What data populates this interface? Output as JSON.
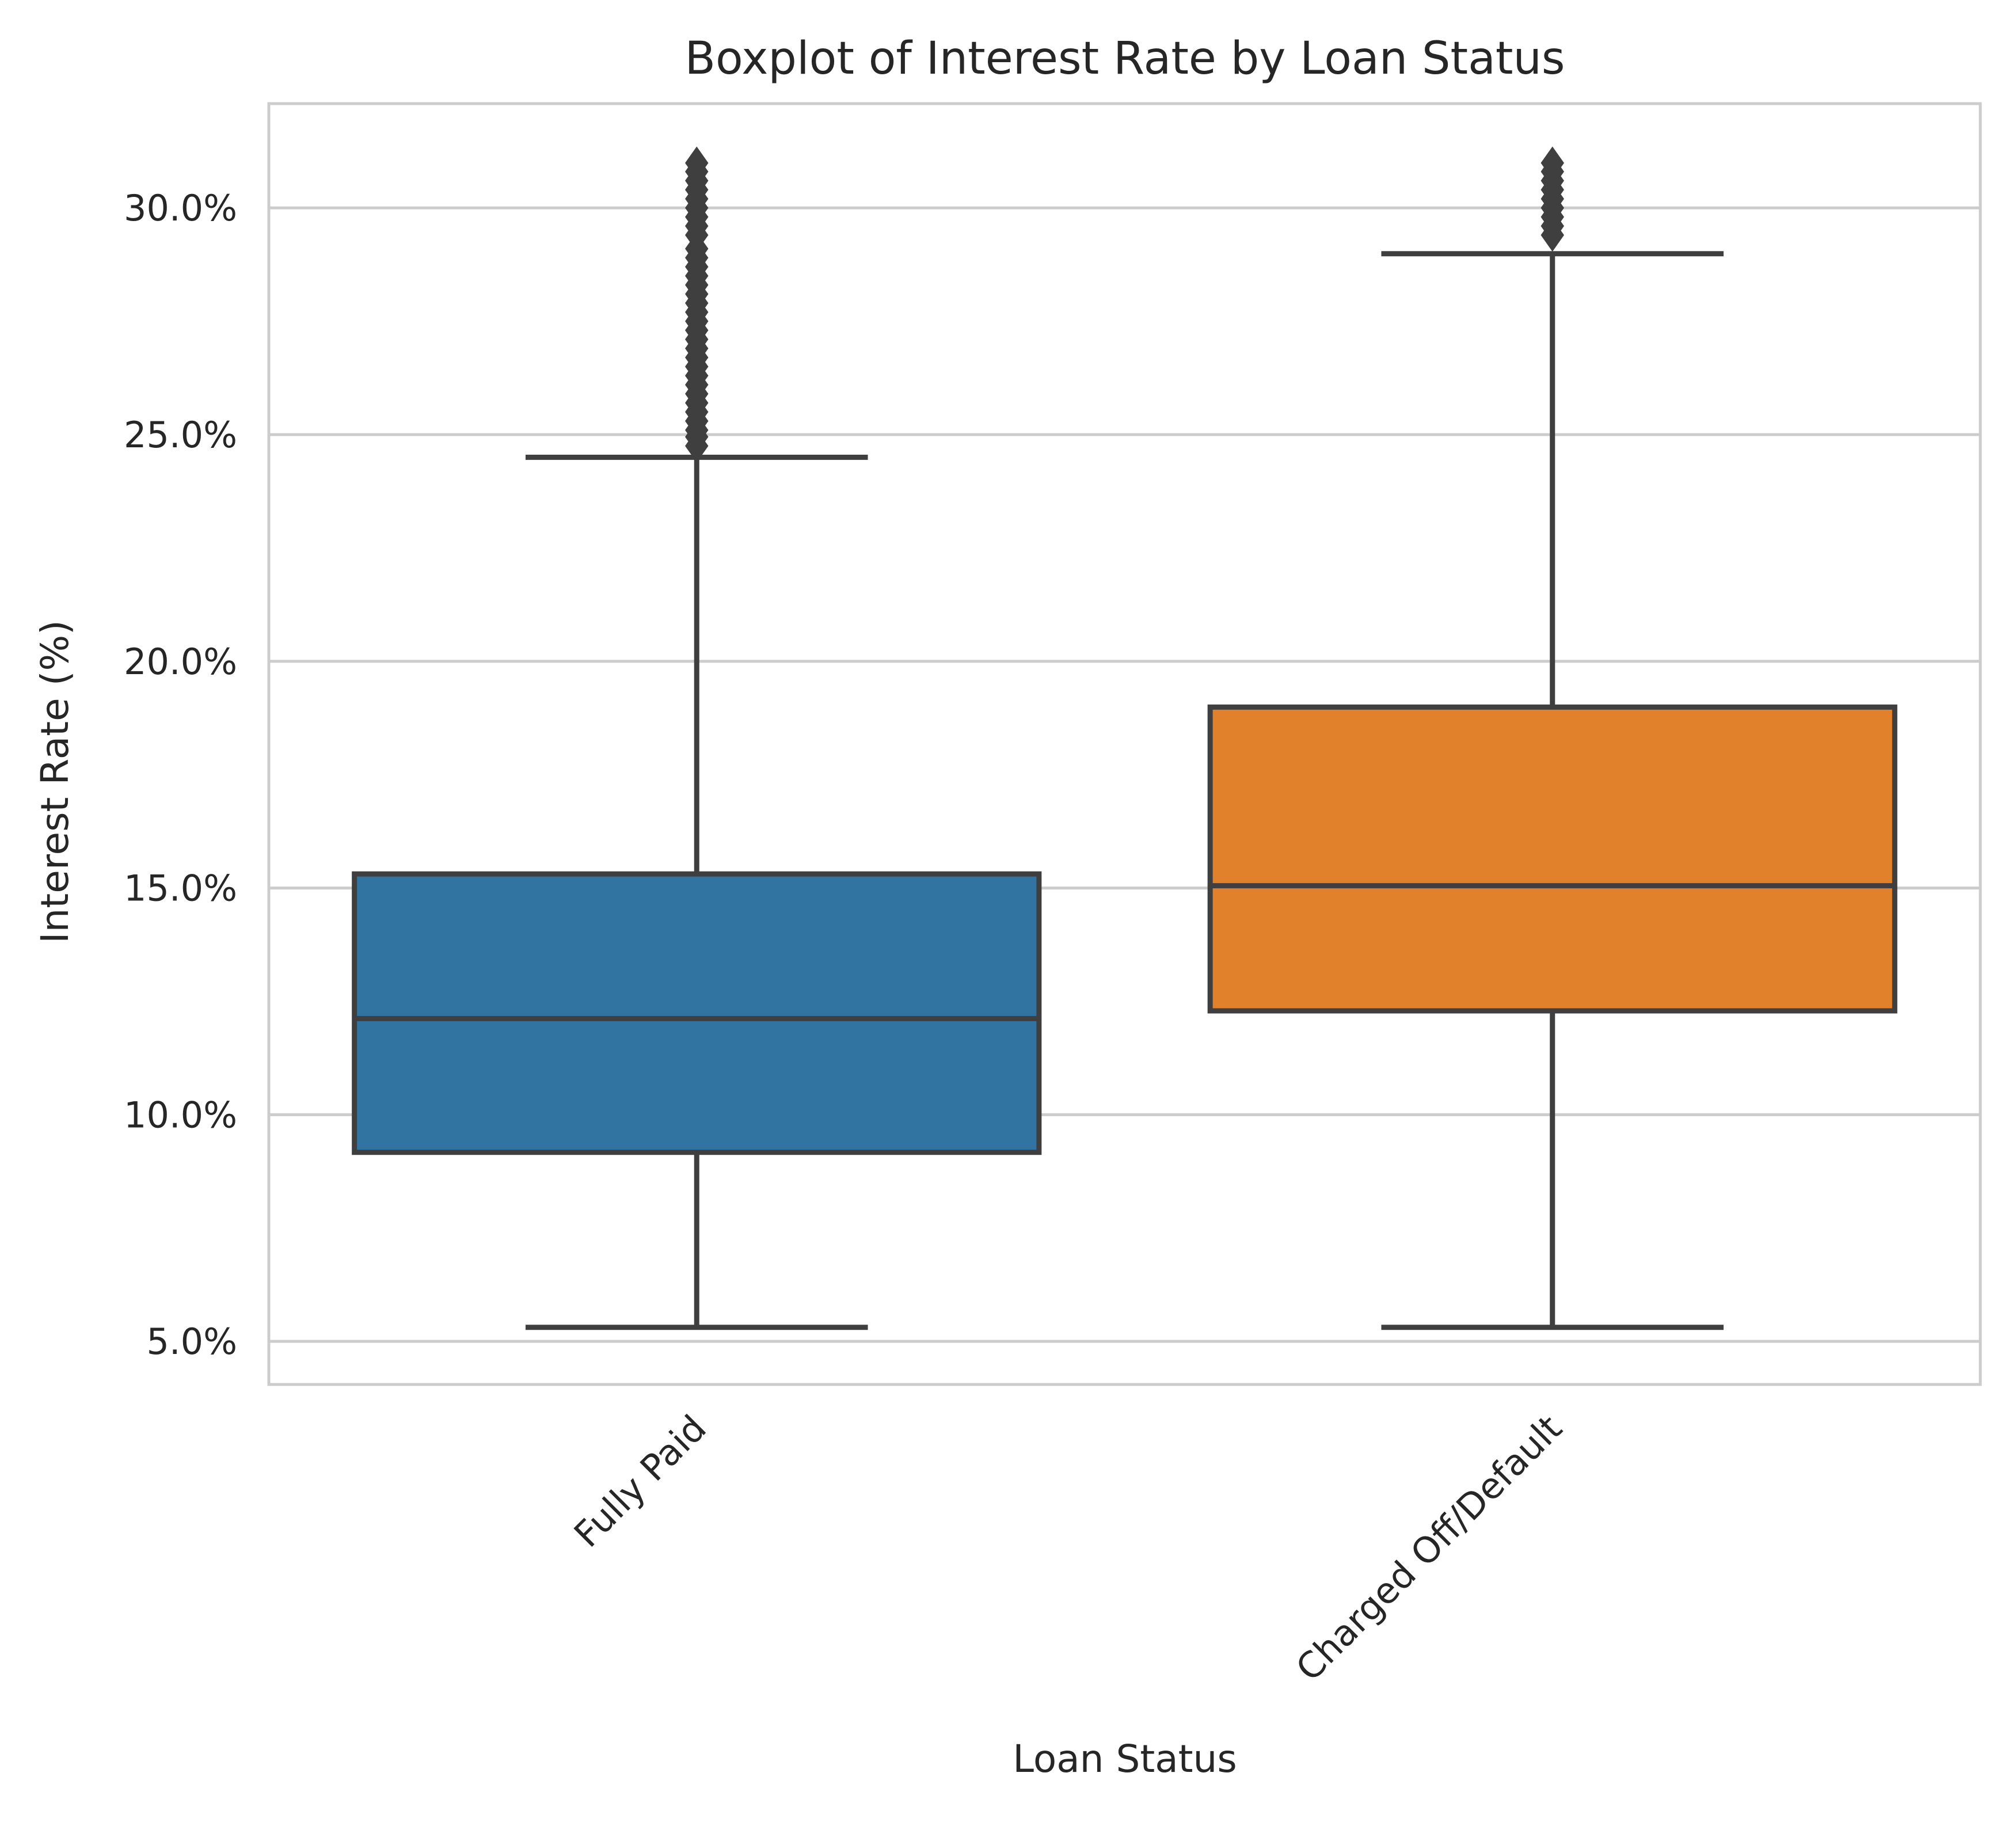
{
  "chart_data": {
    "type": "box",
    "title": "Boxplot of Interest Rate by Loan Status",
    "xlabel": "Loan Status",
    "ylabel": "Interest Rate (%)",
    "ylim": [
      4.05,
      32.3
    ],
    "yticks": [
      5.0,
      10.0,
      15.0,
      20.0,
      25.0,
      30.0
    ],
    "ytick_labels": [
      "5.0%",
      "10.0%",
      "15.0%",
      "20.0%",
      "25.0%",
      "30.0%"
    ],
    "grid": true,
    "categories": [
      "Fully Paid",
      "Charged Off/Default"
    ],
    "boxes": [
      {
        "category": "Fully Paid",
        "color": "#3274a1",
        "whisker_low": 5.31,
        "q1": 9.17,
        "median": 12.12,
        "q3": 15.31,
        "whisker_high": 24.5,
        "outliers": [
          24.75,
          24.95,
          25.1,
          25.3,
          25.5,
          25.7,
          25.9,
          26.1,
          26.3,
          26.5,
          26.7,
          26.9,
          27.1,
          27.3,
          27.5,
          27.7,
          27.9,
          28.1,
          28.3,
          28.5,
          28.7,
          28.9,
          29.1,
          29.4,
          29.6,
          29.8,
          30.0,
          30.2,
          30.4,
          30.6,
          30.8,
          30.99
        ]
      },
      {
        "category": "Charged Off/Default",
        "color": "#e1812c",
        "whisker_low": 5.31,
        "q1": 12.29,
        "median": 15.05,
        "q3": 18.99,
        "whisker_high": 28.99,
        "outliers": [
          29.4,
          29.6,
          29.8,
          30.0,
          30.2,
          30.4,
          30.6,
          30.8,
          30.99
        ]
      }
    ]
  }
}
